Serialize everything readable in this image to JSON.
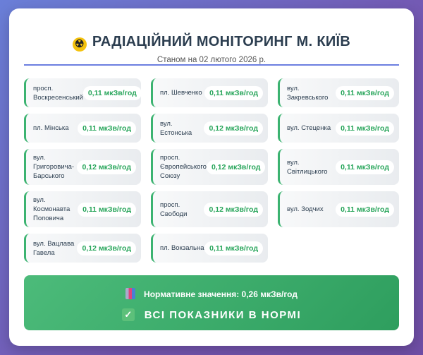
{
  "header": {
    "title": "РАДІАЦІЙНИЙ МОНІТОРИНГ М. КИЇВ",
    "icon": "radiation-icon",
    "subtitle": "Станом на 02 лютого 2026 р."
  },
  "stations": [
    {
      "name": "просп. Воскресенський",
      "value": "0,11 мкЗв/год"
    },
    {
      "name": "пл. Шевченко",
      "value": "0,11 мкЗв/год"
    },
    {
      "name": "вул. Закревського",
      "value": "0,11 мкЗв/год"
    },
    {
      "name": "пл. Мінська",
      "value": "0,11 мкЗв/год"
    },
    {
      "name": "вул. Естонська",
      "value": "0,12 мкЗв/год"
    },
    {
      "name": "вул. Стеценка",
      "value": "0,11 мкЗв/год"
    },
    {
      "name": "вул. Григоровича-Барського",
      "value": "0,12 мкЗв/год"
    },
    {
      "name": "просп. Європейського Союзу",
      "value": "0,12 мкЗв/год"
    },
    {
      "name": "вул. Світлицького",
      "value": "0,11 мкЗв/год"
    },
    {
      "name": "вул. Космонавта Поповича",
      "value": "0,11 мкЗв/год"
    },
    {
      "name": "просп. Свободи",
      "value": "0,12 мкЗв/год"
    },
    {
      "name": "вул. Зодчих",
      "value": "0,11 мкЗв/год"
    },
    {
      "name": "вул. Вацлава Гавела",
      "value": "0,12 мкЗв/год"
    },
    {
      "name": "пл. Вокзальна",
      "value": "0,11 мкЗв/год"
    }
  ],
  "status": {
    "norm": "Нормативне значення: 0,26 мкЗв/год",
    "message": "ВСІ ПОКАЗНИКИ В НОРМІ",
    "color": "#3cb371"
  }
}
